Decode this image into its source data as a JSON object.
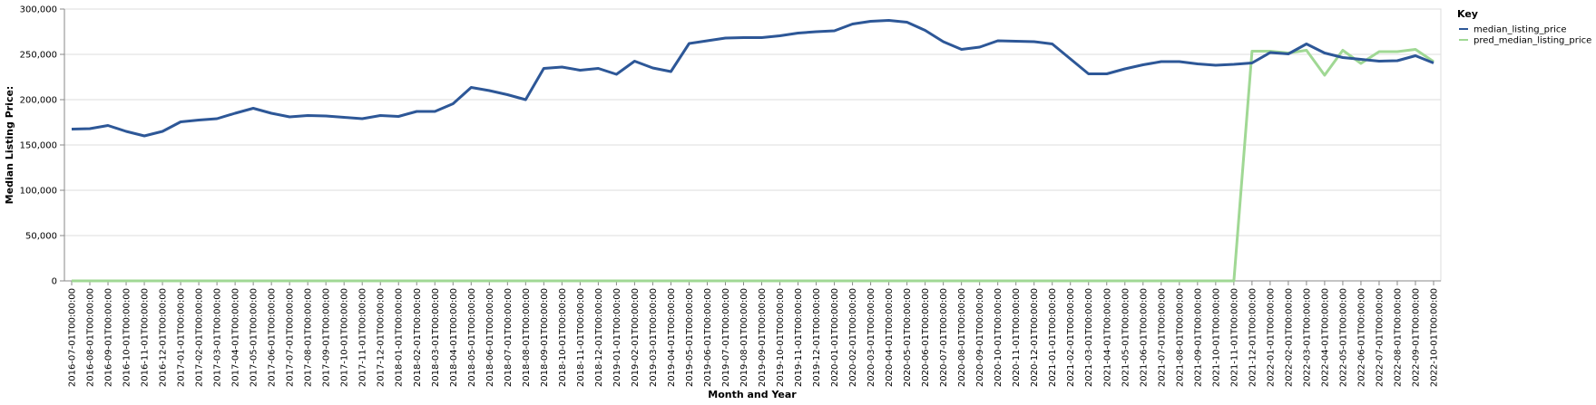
{
  "chart_data": {
    "type": "line",
    "xlabel": "Month and Year",
    "ylabel": "Median Listing Price:",
    "ylim": [
      0,
      300000
    ],
    "yticks": [
      0,
      50000,
      100000,
      150000,
      200000,
      250000,
      300000
    ],
    "ytick_labels": [
      "0",
      "50,000",
      "100,000",
      "150,000",
      "200,000",
      "250,000",
      "300,000"
    ],
    "grid": true,
    "legend_title": "Key",
    "legend_position": "top-right",
    "x": [
      "2016-07-01T00:00:00",
      "2016-08-01T00:00:00",
      "2016-09-01T00:00:00",
      "2016-10-01T00:00:00",
      "2016-11-01T00:00:00",
      "2016-12-01T00:00:00",
      "2017-01-01T00:00:00",
      "2017-02-01T00:00:00",
      "2017-03-01T00:00:00",
      "2017-04-01T00:00:00",
      "2017-05-01T00:00:00",
      "2017-06-01T00:00:00",
      "2017-07-01T00:00:00",
      "2017-08-01T00:00:00",
      "2017-09-01T00:00:00",
      "2017-10-01T00:00:00",
      "2017-11-01T00:00:00",
      "2017-12-01T00:00:00",
      "2018-01-01T00:00:00",
      "2018-02-01T00:00:00",
      "2018-03-01T00:00:00",
      "2018-04-01T00:00:00",
      "2018-05-01T00:00:00",
      "2018-06-01T00:00:00",
      "2018-07-01T00:00:00",
      "2018-08-01T00:00:00",
      "2018-09-01T00:00:00",
      "2018-10-01T00:00:00",
      "2018-11-01T00:00:00",
      "2018-12-01T00:00:00",
      "2019-01-01T00:00:00",
      "2019-02-01T00:00:00",
      "2019-03-01T00:00:00",
      "2019-04-01T00:00:00",
      "2019-05-01T00:00:00",
      "2019-06-01T00:00:00",
      "2019-07-01T00:00:00",
      "2019-08-01T00:00:00",
      "2019-09-01T00:00:00",
      "2019-10-01T00:00:00",
      "2019-11-01T00:00:00",
      "2019-12-01T00:00:00",
      "2020-01-01T00:00:00",
      "2020-02-01T00:00:00",
      "2020-03-01T00:00:00",
      "2020-04-01T00:00:00",
      "2020-05-01T00:00:00",
      "2020-06-01T00:00:00",
      "2020-07-01T00:00:00",
      "2020-08-01T00:00:00",
      "2020-09-01T00:00:00",
      "2020-10-01T00:00:00",
      "2020-11-01T00:00:00",
      "2020-12-01T00:00:00",
      "2021-01-01T00:00:00",
      "2021-02-01T00:00:00",
      "2021-03-01T00:00:00",
      "2021-04-01T00:00:00",
      "2021-05-01T00:00:00",
      "2021-06-01T00:00:00",
      "2021-07-01T00:00:00",
      "2021-08-01T00:00:00",
      "2021-09-01T00:00:00",
      "2021-10-01T00:00:00",
      "2021-11-01T00:00:00",
      "2021-12-01T00:00:00",
      "2022-01-01T00:00:00",
      "2022-02-01T00:00:00",
      "2022-03-01T00:00:00",
      "2022-04-01T00:00:00",
      "2022-05-01T00:00:00",
      "2022-06-01T00:00:00",
      "2022-07-01T00:00:00",
      "2022-08-01T00:00:00",
      "2022-09-01T00:00:00",
      "2022-10-01T00:00:00"
    ],
    "series": [
      {
        "name": "median_listing_price",
        "color": "#2d5797",
        "values": [
          167500,
          168000,
          171500,
          165000,
          160000,
          165000,
          175500,
          177500,
          179000,
          185000,
          190500,
          185000,
          181000,
          182500,
          182000,
          180500,
          179000,
          182500,
          181500,
          187000,
          187000,
          195500,
          213500,
          210000,
          205500,
          200000,
          234500,
          236000,
          232500,
          234500,
          228000,
          242500,
          235000,
          231000,
          262000,
          265000,
          268000,
          268500,
          268500,
          270500,
          273500,
          275000,
          276000,
          283500,
          286500,
          287500,
          285500,
          276500,
          264000,
          255500,
          258000,
          265000,
          264500,
          264000,
          261500,
          245000,
          228500,
          228500,
          234000,
          238500,
          242000,
          242000,
          239500,
          238000,
          239000,
          240500,
          252000,
          250500,
          261500,
          251500,
          246500,
          244500,
          242500,
          243000,
          248500,
          240500
        ]
      },
      {
        "name": "pred_median_listing_price",
        "color": "#a0d894",
        "values": [
          0,
          0,
          0,
          0,
          0,
          0,
          0,
          0,
          0,
          0,
          0,
          0,
          0,
          0,
          0,
          0,
          0,
          0,
          0,
          0,
          0,
          0,
          0,
          0,
          0,
          0,
          0,
          0,
          0,
          0,
          0,
          0,
          0,
          0,
          0,
          0,
          0,
          0,
          0,
          0,
          0,
          0,
          0,
          0,
          0,
          0,
          0,
          0,
          0,
          0,
          0,
          0,
          0,
          0,
          0,
          0,
          0,
          0,
          0,
          0,
          0,
          0,
          0,
          0,
          0,
          253500,
          253500,
          251500,
          254500,
          227000,
          254500,
          240000,
          253000,
          253000,
          255500,
          242000
        ]
      }
    ]
  }
}
